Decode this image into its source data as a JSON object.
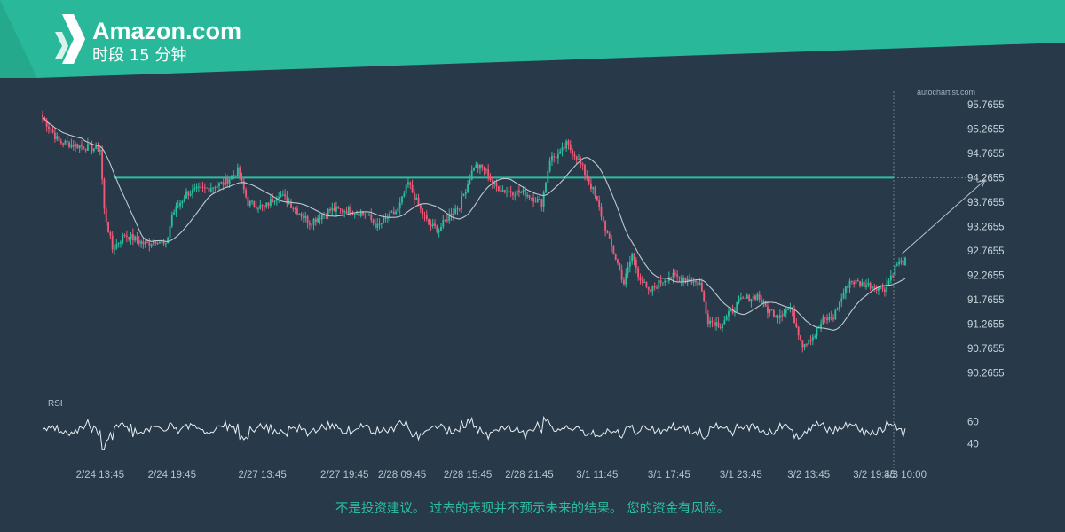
{
  "header": {
    "title": "Amazon.com",
    "subtitle": "时段 15 分钟",
    "logo": "autochartist-logo-icon",
    "accent_color": "#29b99a"
  },
  "watermark": "autochartist.com",
  "disclaimer": "不是投资建议。 过去的表现并不预示未来的结果。 您的资金有风险。",
  "rsi_label": "RSI",
  "chart_data": {
    "type": "candlestick",
    "y_ticks": [
      "95.7655",
      "95.2655",
      "94.7655",
      "94.2655",
      "93.7655",
      "93.2655",
      "92.7655",
      "92.2655",
      "91.7655",
      "91.2655",
      "90.7655",
      "90.2655"
    ],
    "ylim": [
      90.0,
      96.0
    ],
    "x_ticks": [
      "2/24 13:45",
      "2/24 19:45",
      "2/27 13:45",
      "2/27 19:45",
      "2/28 09:45",
      "2/28 15:45",
      "2/28 21:45",
      "3/1 11:45",
      "3/1 17:45",
      "3/1 23:45",
      "3/2 13:45",
      "3/2 19:45",
      "3/3 10:00"
    ],
    "resistance_level": 94.2655,
    "projection": {
      "from": 92.7,
      "to": 94.22
    },
    "colors": {
      "up": "#2bbf9f",
      "down": "#ef5a78",
      "ma": "#c0c8ce",
      "level": "#2bbf9f",
      "grid": "#7e8f9c"
    },
    "key_points": [
      [
        0,
        95.5
      ],
      [
        8,
        95.0
      ],
      [
        20,
        94.9
      ],
      [
        28,
        94.85
      ],
      [
        30,
        93.6
      ],
      [
        34,
        92.8
      ],
      [
        40,
        93.1
      ],
      [
        50,
        92.9
      ],
      [
        56,
        93.0
      ],
      [
        60,
        92.85
      ],
      [
        63,
        93.5
      ],
      [
        70,
        93.95
      ],
      [
        80,
        94.05
      ],
      [
        88,
        94.15
      ],
      [
        95,
        94.4
      ],
      [
        100,
        93.75
      ],
      [
        108,
        93.65
      ],
      [
        115,
        93.95
      ],
      [
        125,
        93.55
      ],
      [
        130,
        93.35
      ],
      [
        140,
        93.6
      ],
      [
        150,
        93.6
      ],
      [
        158,
        93.5
      ],
      [
        163,
        93.25
      ],
      [
        168,
        93.45
      ],
      [
        173,
        93.6
      ],
      [
        178,
        94.15
      ],
      [
        184,
        93.6
      ],
      [
        188,
        93.3
      ],
      [
        193,
        93.2
      ],
      [
        198,
        93.5
      ],
      [
        203,
        93.7
      ],
      [
        210,
        94.5
      ],
      [
        215,
        94.45
      ],
      [
        220,
        94.1
      ],
      [
        225,
        94.0
      ],
      [
        235,
        93.95
      ],
      [
        243,
        93.75
      ],
      [
        247,
        94.65
      ],
      [
        252,
        94.75
      ],
      [
        255,
        94.95
      ],
      [
        260,
        94.7
      ],
      [
        263,
        94.45
      ],
      [
        268,
        94.0
      ],
      [
        272,
        93.5
      ],
      [
        276,
        92.95
      ],
      [
        280,
        92.5
      ],
      [
        283,
        92.1
      ],
      [
        287,
        92.7
      ],
      [
        290,
        92.3
      ],
      [
        295,
        91.9
      ],
      [
        300,
        92.1
      ],
      [
        305,
        92.25
      ],
      [
        313,
        92.2
      ],
      [
        320,
        92.1
      ],
      [
        324,
        91.35
      ],
      [
        330,
        91.25
      ],
      [
        335,
        91.5
      ],
      [
        340,
        91.75
      ],
      [
        348,
        91.85
      ],
      [
        353,
        91.55
      ],
      [
        358,
        91.45
      ],
      [
        364,
        91.6
      ],
      [
        370,
        90.85
      ],
      [
        376,
        91.05
      ],
      [
        380,
        91.35
      ],
      [
        385,
        91.4
      ],
      [
        390,
        91.9
      ],
      [
        393,
        92.15
      ],
      [
        398,
        92.1
      ],
      [
        410,
        92.0
      ],
      [
        413,
        92.25
      ],
      [
        416,
        92.5
      ],
      [
        420,
        92.55
      ]
    ],
    "rsi": {
      "ticks": [
        "60",
        "40"
      ],
      "ylim": [
        30,
        70
      ]
    }
  }
}
